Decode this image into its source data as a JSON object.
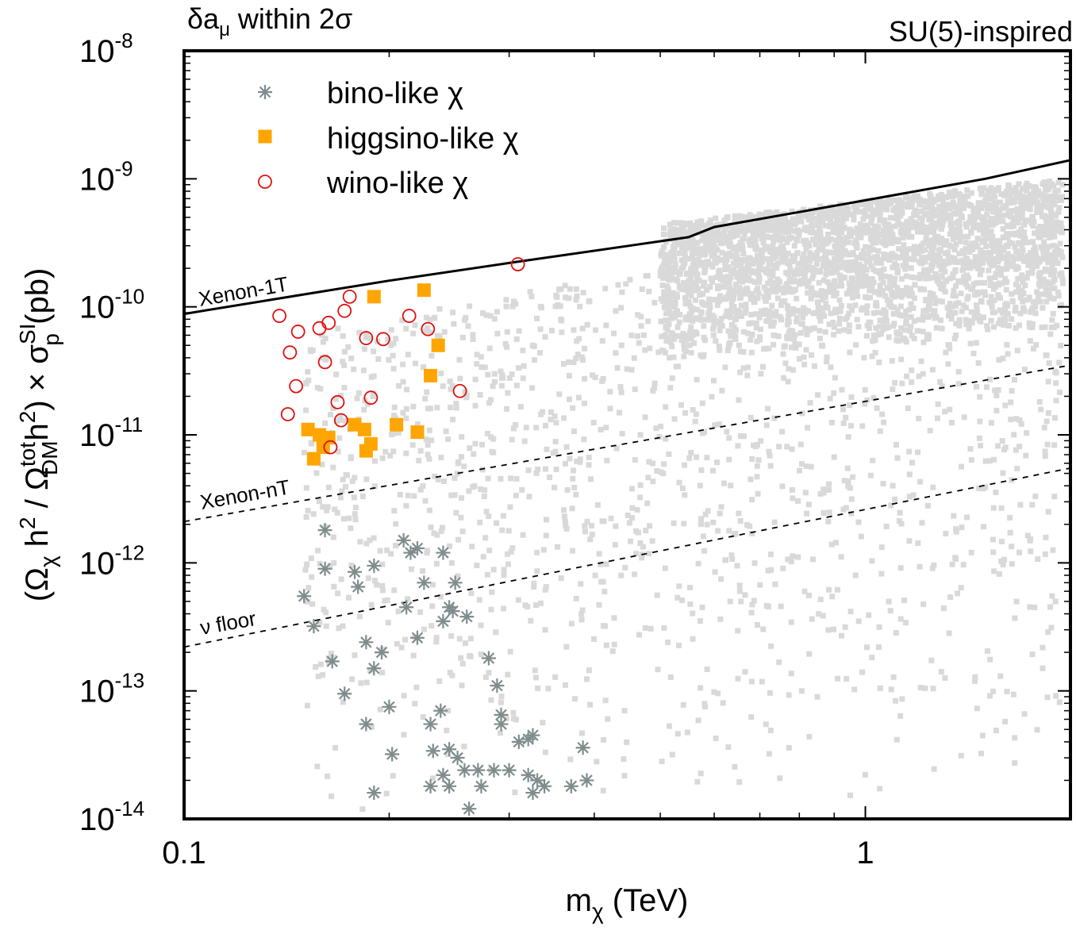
{
  "chart_data": {
    "type": "scatter",
    "title_left": "δa",
    "title_left_sub": "μ",
    "title_left_rest": " within 2σ",
    "title_right": "SU(5)-inspired",
    "xlabel_main": "m",
    "xlabel_sub": "χ",
    "xlabel_rest": " (TeV)",
    "ylabel": {
      "open": "(Ω",
      "chi": "χ",
      "h": " h",
      "two": "2",
      "slash": " / Ω",
      "tot": "tot",
      "dm": "DM",
      "h2": "h",
      "close": ") × σ",
      "si": "SI",
      "p": "p",
      "unit": "  (pb)"
    },
    "x_scale": "log",
    "y_scale": "log",
    "xlim": [
      0.1,
      2.0
    ],
    "ylim": [
      1e-14,
      1e-08
    ],
    "x_ticks": [
      {
        "value": 0.1,
        "label": "0.1"
      },
      {
        "value": 1,
        "label": "1"
      }
    ],
    "y_ticks": [
      {
        "value": 1e-14,
        "base": "10",
        "exp": "-14"
      },
      {
        "value": 1e-13,
        "base": "10",
        "exp": "-13"
      },
      {
        "value": 1e-12,
        "base": "10",
        "exp": "-12"
      },
      {
        "value": 1e-11,
        "base": "10",
        "exp": "-11"
      },
      {
        "value": 1e-10,
        "base": "10",
        "exp": "-10"
      },
      {
        "value": 1e-09,
        "base": "10",
        "exp": "-9"
      },
      {
        "value": 1e-08,
        "base": "10",
        "exp": "-8"
      }
    ],
    "legend": [
      {
        "name": "bino-like χ",
        "marker": "star",
        "color": "#7f8c8d"
      },
      {
        "name": "higgsino-like χ",
        "marker": "square",
        "color": "#ffa500"
      },
      {
        "name": "wino-like χ",
        "marker": "circle",
        "color": "#e01010"
      }
    ],
    "legend_position": "top-left",
    "background_points_color": "#d9d9d9",
    "limit_curves": [
      {
        "name": "Xenon-1T",
        "style": "solid",
        "points": [
          [
            0.1,
            8.8e-11
          ],
          [
            0.15,
            1.25e-10
          ],
          [
            0.2,
            1.6e-10
          ],
          [
            0.3,
            2.2e-10
          ],
          [
            0.45,
            3e-10
          ],
          [
            0.55,
            3.5e-10
          ],
          [
            0.6,
            4.2e-10
          ],
          [
            0.8,
            5.5e-10
          ],
          [
            1.0,
            6.8e-10
          ],
          [
            1.5,
            1e-09
          ],
          [
            2.0,
            1.4e-09
          ]
        ]
      },
      {
        "name": "Xenon-nT",
        "style": "dashed",
        "points": [
          [
            0.1,
            2.1e-12
          ],
          [
            2.0,
            3.5e-11
          ]
        ]
      },
      {
        "name": "ν floor",
        "style": "dashed",
        "points": [
          [
            0.1,
            2.2e-13
          ],
          [
            2.0,
            5.5e-12
          ]
        ]
      }
    ],
    "limit_labels": [
      "Xenon-1T",
      "Xenon-nT",
      "ν floor"
    ],
    "series": [
      {
        "name": "bino-like χ",
        "points": [
          [
            0.161,
            1.8e-12
          ],
          [
            0.161,
            9e-13
          ],
          [
            0.15,
            5.5e-13
          ],
          [
            0.155,
            3.2e-13
          ],
          [
            0.165,
            1.7e-13
          ],
          [
            0.172,
            9.5e-14
          ],
          [
            0.178,
            8.5e-13
          ],
          [
            0.18,
            6.5e-13
          ],
          [
            0.19,
            9.5e-13
          ],
          [
            0.185,
            2.4e-13
          ],
          [
            0.19,
            1.5e-13
          ],
          [
            0.195,
            2e-13
          ],
          [
            0.185,
            5.5e-14
          ],
          [
            0.2,
            7.5e-14
          ],
          [
            0.202,
            3.2e-14
          ],
          [
            0.19,
            1.6e-14
          ],
          [
            0.21,
            1.5e-12
          ],
          [
            0.215,
            1.2e-12
          ],
          [
            0.22,
            1.3e-12
          ],
          [
            0.212,
            4.5e-13
          ],
          [
            0.22,
            2.6e-13
          ],
          [
            0.225,
            7e-13
          ],
          [
            0.23,
            5.5e-14
          ],
          [
            0.232,
            3.4e-14
          ],
          [
            0.23,
            1.8e-14
          ],
          [
            0.24,
            1.2e-12
          ],
          [
            0.245,
            4.5e-13
          ],
          [
            0.248,
            4.2e-13
          ],
          [
            0.24,
            3.5e-13
          ],
          [
            0.25,
            7e-13
          ],
          [
            0.24,
            2.2e-14
          ],
          [
            0.245,
            1.8e-14
          ],
          [
            0.238,
            7e-14
          ],
          [
            0.245,
            3.5e-14
          ],
          [
            0.252,
            3e-14
          ],
          [
            0.258,
            2.4e-14
          ],
          [
            0.26,
            3.8e-13
          ],
          [
            0.27,
            2.4e-14
          ],
          [
            0.273,
            1.8e-14
          ],
          [
            0.262,
            1.2e-14
          ],
          [
            0.28,
            1.8e-13
          ],
          [
            0.288,
            1.1e-13
          ],
          [
            0.292,
            5.5e-14
          ],
          [
            0.292,
            6.5e-14
          ],
          [
            0.285,
            2.4e-14
          ],
          [
            0.3,
            2.4e-14
          ],
          [
            0.31,
            4e-14
          ],
          [
            0.32,
            4.2e-14
          ],
          [
            0.325,
            4.5e-14
          ],
          [
            0.32,
            2.2e-14
          ],
          [
            0.325,
            1.6e-14
          ],
          [
            0.33,
            2e-14
          ],
          [
            0.338,
            1.8e-14
          ],
          [
            0.37,
            1.8e-14
          ],
          [
            0.385,
            3.6e-14
          ],
          [
            0.39,
            2e-14
          ]
        ]
      },
      {
        "name": "higgsino-like χ",
        "points": [
          [
            0.19,
            1.2e-10
          ],
          [
            0.225,
            1.35e-10
          ],
          [
            0.236,
            5e-11
          ],
          [
            0.23,
            2.9e-11
          ],
          [
            0.152,
            1.1e-11
          ],
          [
            0.158,
            1e-11
          ],
          [
            0.163,
            9.5e-12
          ],
          [
            0.16,
            8e-12
          ],
          [
            0.155,
            6.5e-12
          ],
          [
            0.178,
            1.2e-11
          ],
          [
            0.184,
            1.1e-11
          ],
          [
            0.188,
            8.5e-12
          ],
          [
            0.185,
            7.5e-12
          ],
          [
            0.205,
            1.2e-11
          ],
          [
            0.22,
            1.05e-11
          ]
        ]
      },
      {
        "name": "wino-like χ",
        "points": [
          [
            0.138,
            8.5e-11
          ],
          [
            0.147,
            6.4e-11
          ],
          [
            0.143,
            4.4e-11
          ],
          [
            0.146,
            2.4e-11
          ],
          [
            0.142,
            1.45e-11
          ],
          [
            0.158,
            6.8e-11
          ],
          [
            0.163,
            7.5e-11
          ],
          [
            0.161,
            3.7e-11
          ],
          [
            0.175,
            1.2e-10
          ],
          [
            0.172,
            9.3e-11
          ],
          [
            0.185,
            5.7e-11
          ],
          [
            0.196,
            5.6e-11
          ],
          [
            0.214,
            8.5e-11
          ],
          [
            0.228,
            6.7e-11
          ],
          [
            0.254,
            2.2e-11
          ],
          [
            0.168,
            1.8e-11
          ],
          [
            0.17,
            1.3e-11
          ],
          [
            0.188,
            1.95e-11
          ],
          [
            0.164,
            8e-12
          ],
          [
            0.309,
            2.15e-10
          ]
        ]
      }
    ]
  }
}
